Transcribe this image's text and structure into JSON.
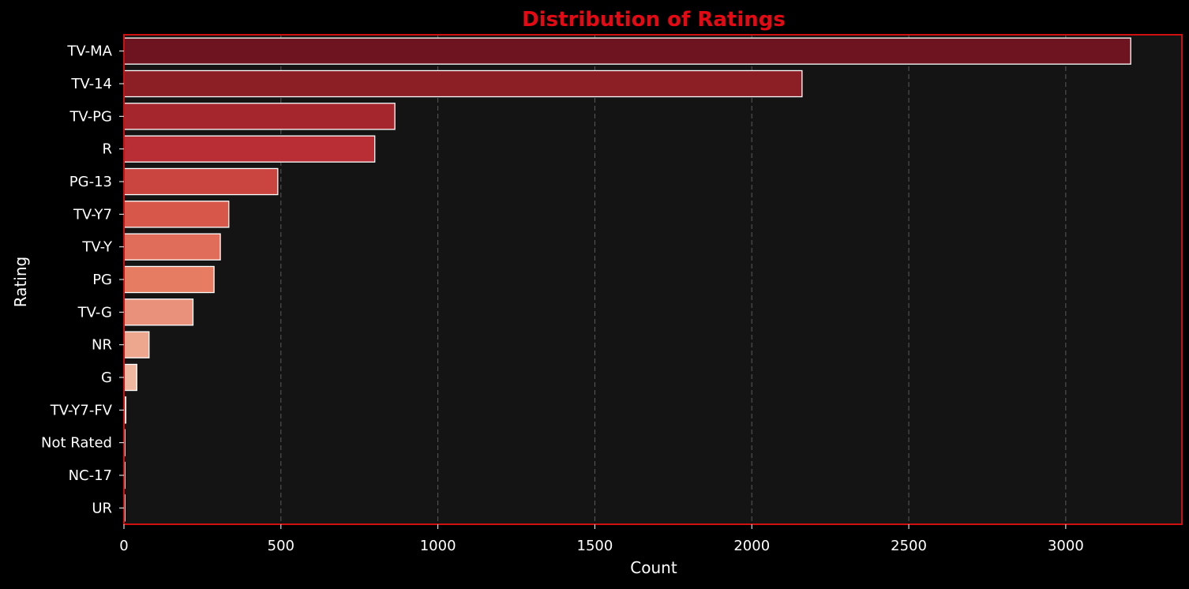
{
  "chart_data": {
    "type": "bar",
    "orientation": "horizontal",
    "title": "Distribution of Ratings",
    "xlabel": "Count",
    "ylabel": "Rating",
    "categories": [
      "TV-MA",
      "TV-14",
      "TV-PG",
      "R",
      "PG-13",
      "TV-Y7",
      "TV-Y",
      "PG",
      "TV-G",
      "NR",
      "G",
      "TV-Y7-FV",
      "Not Rated",
      "NC-17",
      "UR"
    ],
    "values": [
      3207,
      2160,
      863,
      799,
      490,
      334,
      307,
      287,
      220,
      80,
      41,
      6,
      3,
      3,
      3
    ],
    "xlim": [
      0,
      3370
    ],
    "xticks": [
      0,
      500,
      1000,
      1500,
      2000,
      2500,
      3000
    ],
    "xtick_labels": [
      "0",
      "500",
      "1000",
      "1500",
      "2000",
      "2500",
      "3000"
    ],
    "grid": {
      "axis": "x",
      "style": "dashed"
    },
    "colors": {
      "figure_background": "#000000",
      "plot_background": "#141414",
      "frame": "#d01010",
      "title": "#e50914",
      "text": "#ffffff",
      "grid": "#5a5a5a",
      "bar_edge": "#ffffff",
      "bars": [
        "#6e1420",
        "#8c1f26",
        "#a5272d",
        "#b92d35",
        "#cb4540",
        "#d8574b",
        "#e06c5a",
        "#e67d63",
        "#e9917a",
        "#eda78e",
        "#f0b7a0",
        "#f3c2ac",
        "#f5cab5",
        "#f7d3bf",
        "#f8dbc9"
      ]
    }
  }
}
